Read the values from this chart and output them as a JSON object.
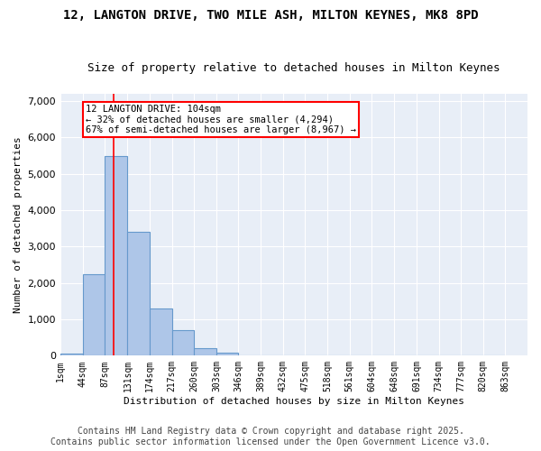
{
  "title_line1": "12, LANGTON DRIVE, TWO MILE ASH, MILTON KEYNES, MK8 8PD",
  "title_line2": "Size of property relative to detached houses in Milton Keynes",
  "xlabel": "Distribution of detached houses by size in Milton Keynes",
  "ylabel": "Number of detached properties",
  "bin_labels": [
    "1sqm",
    "44sqm",
    "87sqm",
    "131sqm",
    "174sqm",
    "217sqm",
    "260sqm",
    "303sqm",
    "346sqm",
    "389sqm",
    "432sqm",
    "475sqm",
    "518sqm",
    "561sqm",
    "604sqm",
    "648sqm",
    "691sqm",
    "734sqm",
    "777sqm",
    "820sqm",
    "863sqm"
  ],
  "bin_edges": [
    1,
    44,
    87,
    131,
    174,
    217,
    260,
    303,
    346,
    389,
    432,
    475,
    518,
    561,
    604,
    648,
    691,
    734,
    777,
    820,
    863
  ],
  "bar_heights": [
    50,
    2250,
    5500,
    3400,
    1300,
    700,
    200,
    80,
    15,
    5,
    2,
    1,
    0,
    0,
    0,
    0,
    0,
    0,
    0,
    0
  ],
  "bar_color": "#aec6e8",
  "bar_edgecolor": "#6699cc",
  "bar_linewidth": 0.8,
  "vline_x": 104,
  "vline_color": "red",
  "vline_linewidth": 1.2,
  "annotation_box_text": "12 LANGTON DRIVE: 104sqm\n← 32% of detached houses are smaller (4,294)\n67% of semi-detached houses are larger (8,967) →",
  "annotation_box_facecolor": "white",
  "annotation_box_edgecolor": "red",
  "ylim": [
    0,
    7200
  ],
  "yticks": [
    0,
    1000,
    2000,
    3000,
    4000,
    5000,
    6000,
    7000
  ],
  "bg_color": "#e8eef7",
  "footer_line1": "Contains HM Land Registry data © Crown copyright and database right 2025.",
  "footer_line2": "Contains public sector information licensed under the Open Government Licence v3.0.",
  "title_fontsize": 10,
  "subtitle_fontsize": 9,
  "annotation_fontsize": 7.5,
  "footer_fontsize": 7,
  "ylabel_fontsize": 8,
  "xlabel_fontsize": 8,
  "ytick_fontsize": 8,
  "xtick_fontsize": 7
}
